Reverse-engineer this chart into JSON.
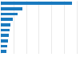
{
  "values": [
    2800,
    850,
    650,
    480,
    390,
    350,
    310,
    280,
    250,
    220
  ],
  "bar_color": "#1a7abf",
  "background_color": "#ffffff",
  "grid_color": "#d9d9d9",
  "xlim": [
    0,
    3100
  ],
  "bar_height": 0.55,
  "n_bars": 10
}
